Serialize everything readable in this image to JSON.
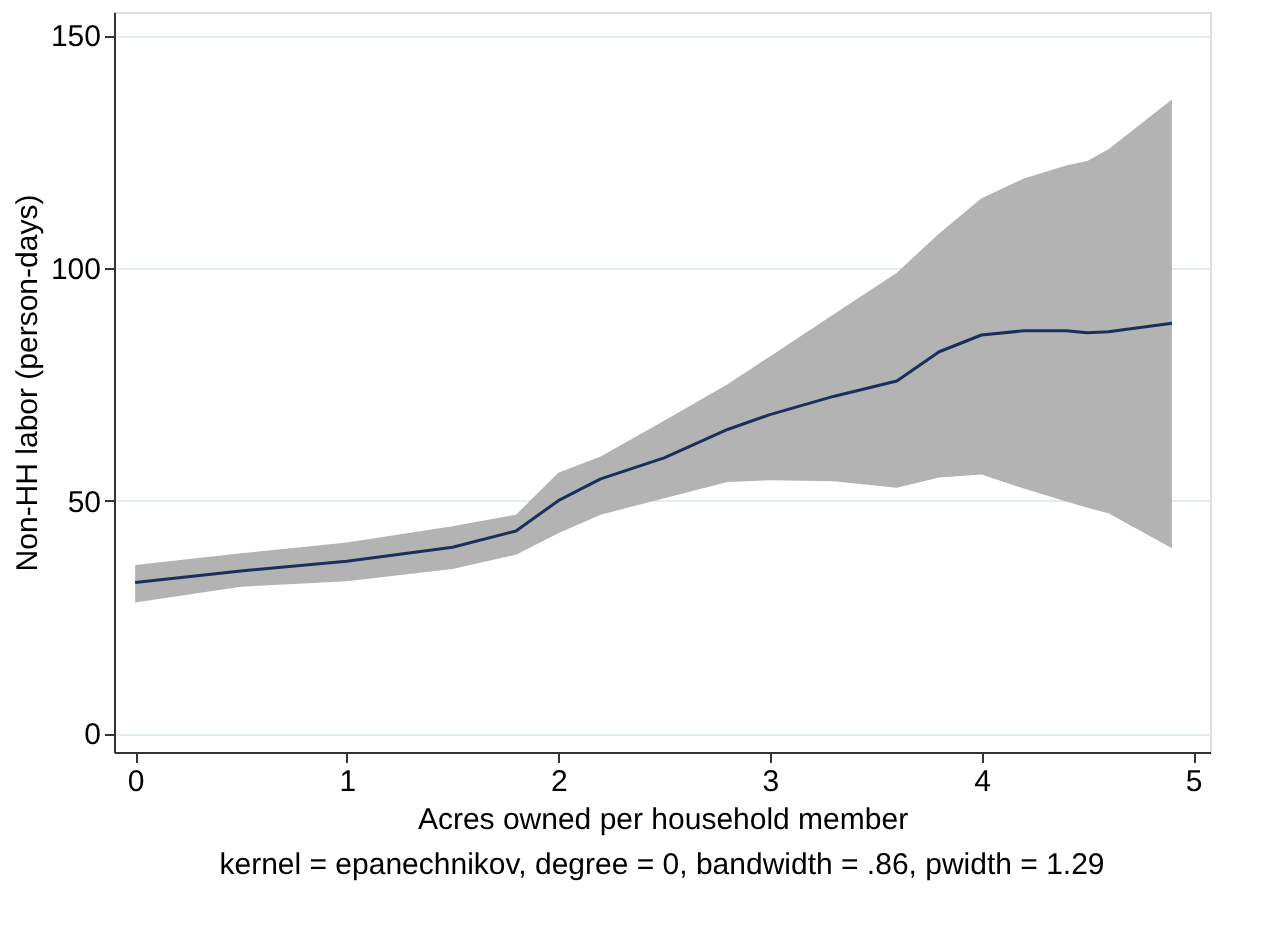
{
  "chart_data": {
    "type": "line",
    "xlabel": "Acres owned per household member",
    "ylabel": "Non-HH labor (person-days)",
    "annotations": [
      "kernel = epanechnikov, degree = 0, bandwidth = .86, pwidth = 1.29"
    ],
    "x": [
      0,
      0.5,
      1,
      1.5,
      1.8,
      2,
      2.2,
      2.5,
      2.8,
      3,
      3.3,
      3.6,
      3.8,
      4,
      4.2,
      4.4,
      4.5,
      4.6,
      4.9
    ],
    "series": [
      {
        "color": "#1a2f5e",
        "values": [
          32.4,
          34.9,
          37,
          40,
          43.5,
          50,
          54.7,
          59.2,
          65.3,
          68.5,
          72.4,
          75.7,
          82,
          85.6,
          86.5,
          86.5,
          86.1,
          86.3,
          88.1
        ],
        "lower": [
          28.1,
          31.5,
          32.7,
          35.3,
          38.4,
          43,
          47,
          50.5,
          54,
          54.4,
          54.2,
          52.8,
          55,
          55.6,
          52.6,
          49.8,
          48.5,
          47.3,
          39.8
        ],
        "upper": [
          36.2,
          38.7,
          41,
          44.5,
          47,
          56,
          59.5,
          67.2,
          75,
          81,
          90,
          99,
          107.4,
          115,
          119.2,
          122,
          123,
          125.5,
          136.2
        ]
      }
    ],
    "xlim": [
      -0.1,
      5.08
    ],
    "ylim": [
      -4,
      155
    ],
    "xticks": [
      0,
      1,
      2,
      3,
      4,
      5
    ],
    "yticks": [
      0,
      50,
      100,
      150
    ],
    "grid": "y",
    "line_style": "solid",
    "marker": "none"
  }
}
